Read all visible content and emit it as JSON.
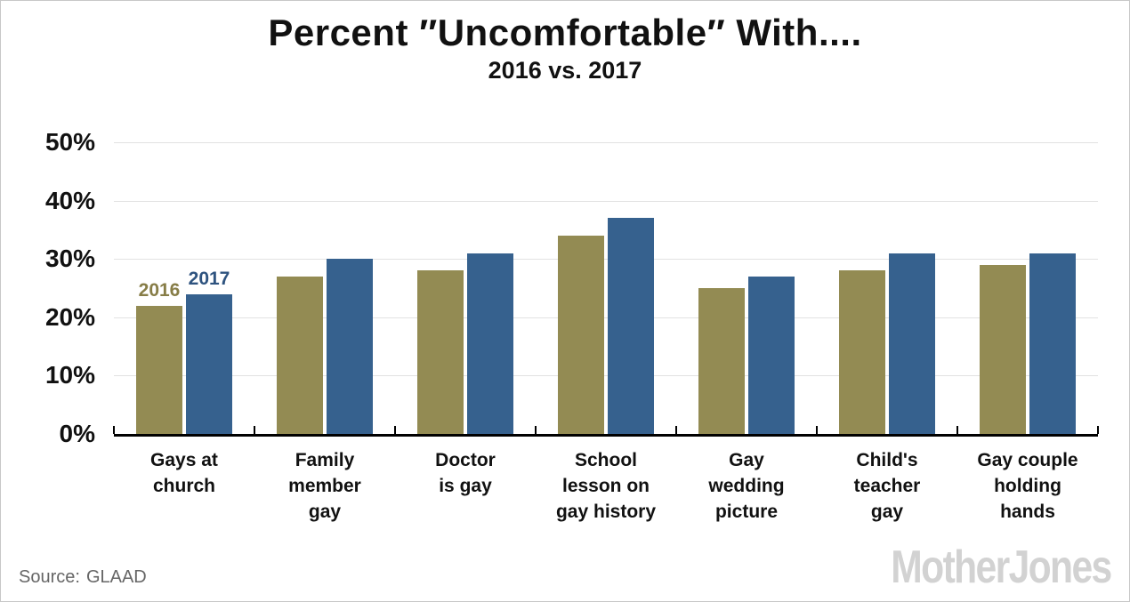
{
  "title": "Percent ″Uncomfortable″ With....",
  "subtitle": "2016 vs. 2017",
  "footer": {
    "source_label": "Source:",
    "source_value": "GLAAD",
    "logo_text": "MotherJones"
  },
  "colors": {
    "bar_2016": "#938b53",
    "bar_2017": "#36618e",
    "label_2016": "#877d47",
    "label_2017": "#2e537f",
    "gridline": "#e2e2e2",
    "axis": "#000000",
    "text": "#111111",
    "source_text": "#666666",
    "logo": "#d2d2d2",
    "page_border": "#c8c8c8"
  },
  "chart_data": {
    "type": "bar",
    "title": "Percent ″Uncomfortable″ With....",
    "subtitle": "2016 vs. 2017",
    "categories": [
      "Gays at church",
      "Family member gay",
      "Doctor is gay",
      "School lesson on gay history",
      "Gay wedding picture",
      "Child's teacher gay",
      "Gay couple holding hands"
    ],
    "categories_lines": [
      [
        "Gays at",
        "church"
      ],
      [
        "Family",
        "member",
        "gay"
      ],
      [
        "Doctor",
        "is gay"
      ],
      [
        "School",
        "lesson on",
        "gay history"
      ],
      [
        "Gay",
        "wedding",
        "picture"
      ],
      [
        "Child's",
        "teacher",
        "gay"
      ],
      [
        "Gay couple",
        "holding",
        "hands"
      ]
    ],
    "series": [
      {
        "name": "2016",
        "values": [
          22,
          27,
          28,
          34,
          25,
          28,
          29
        ]
      },
      {
        "name": "2017",
        "values": [
          24,
          30,
          31,
          37,
          27,
          31,
          31
        ]
      }
    ],
    "xlabel": "",
    "ylabel": "",
    "ylim": [
      0,
      50
    ],
    "y_tick_values": [
      0,
      10,
      20,
      30,
      40,
      50
    ],
    "y_tick_labels": [
      "0%",
      "10%",
      "20%",
      "30%",
      "40%",
      "50%"
    ],
    "grid": true,
    "legend_position": "labels-above-first-bars"
  }
}
